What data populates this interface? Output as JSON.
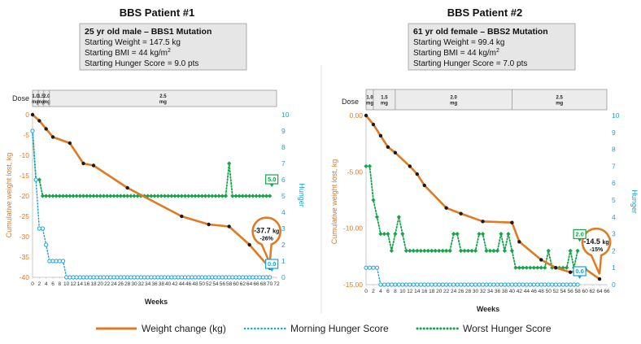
{
  "colors": {
    "weight": "#e07a22",
    "morning": "#1aa3d9",
    "worst": "#16a34a",
    "box_fill": "#e6e6e6"
  },
  "legend": {
    "weight_label": "Weight change (kg)",
    "morning_label": "Morning Hunger Score",
    "worst_label": "Worst Hunger Score"
  },
  "chart_data": [
    {
      "type": "line",
      "title": "BBS Patient #1",
      "info_box": {
        "heading": "25 yr old male – BBS1 Mutation",
        "line1": "Starting Weight = 147.5 kg",
        "line2_prefix": "Starting BMI = 44 kg/m",
        "line2_sup": "2",
        "line3": "Starting Hunger Score = 9.0 pts"
      },
      "dose_label": "Dose",
      "dose_segments": [
        {
          "from": 0,
          "to": 1.7,
          "label": [
            "1.0",
            "mg"
          ]
        },
        {
          "from": 1.7,
          "to": 3.3,
          "label": [
            "1.5",
            "mg"
          ]
        },
        {
          "from": 3.3,
          "to": 5,
          "label": [
            "2.0",
            "mg"
          ]
        },
        {
          "from": 5,
          "to": 72,
          "label": [
            "2.5",
            "mg"
          ]
        }
      ],
      "xlabel": "Weeks",
      "ylabel": "Cumulative weight lost, kg",
      "y2label": "Hunger",
      "xlim": [
        0,
        72
      ],
      "x_ticks": [
        0,
        2,
        4,
        6,
        8,
        10,
        12,
        14,
        16,
        18,
        20,
        22,
        24,
        26,
        28,
        30,
        32,
        34,
        36,
        38,
        40,
        42,
        44,
        46,
        48,
        50,
        52,
        54,
        56,
        58,
        60,
        62,
        64,
        66,
        68,
        70,
        72
      ],
      "ylim": [
        -40,
        0
      ],
      "y_ticks": [
        0,
        -5,
        -10,
        -15,
        -20,
        -25,
        -30,
        -35,
        -40
      ],
      "y_tick_labels": [
        "0",
        "-5",
        "-10",
        "-15",
        "-20",
        "-25",
        "-30",
        "-35",
        "-40"
      ],
      "y2lim": [
        0,
        10
      ],
      "y2_ticks": [
        0,
        1,
        2,
        3,
        4,
        5,
        6,
        7,
        8,
        9,
        10
      ],
      "weight": {
        "x": [
          0,
          2,
          4,
          6,
          11,
          15,
          18,
          28,
          44,
          52,
          58,
          64,
          70
        ],
        "y": [
          0,
          -1.5,
          -3.5,
          -5.5,
          -7,
          -12,
          -12.5,
          -18,
          -25,
          -27,
          -27.5,
          -32,
          -37.7
        ]
      },
      "morning": {
        "x": [
          0,
          1,
          2,
          3,
          4,
          5,
          6,
          7,
          8,
          9,
          10,
          11,
          12,
          13,
          14,
          15,
          16,
          17,
          18,
          19,
          20,
          21,
          22,
          23,
          24,
          25,
          26,
          27,
          28,
          29,
          30,
          31,
          32,
          33,
          34,
          35,
          36,
          37,
          38,
          39,
          40,
          41,
          42,
          43,
          44,
          45,
          46,
          47,
          48,
          49,
          50,
          51,
          52,
          53,
          54,
          55,
          56,
          57,
          58,
          59,
          60,
          61,
          62,
          63,
          64,
          65,
          66,
          67,
          68,
          69,
          70
        ],
        "y": [
          9,
          6,
          3,
          3,
          2,
          1,
          1,
          1,
          1,
          1,
          0,
          0,
          0,
          0,
          0,
          0,
          0,
          0,
          0,
          0,
          0,
          0,
          0,
          0,
          0,
          0,
          0,
          0,
          0,
          0,
          0,
          0,
          0,
          0,
          0,
          0,
          0,
          0,
          0,
          0,
          0,
          0,
          0,
          0,
          0,
          0,
          0,
          0,
          0,
          0,
          0,
          0,
          0,
          0,
          0,
          0,
          0,
          0,
          0,
          0,
          0,
          0,
          0,
          0,
          0,
          0,
          0,
          0,
          0,
          0,
          0
        ]
      },
      "worst": {
        "x": [
          0,
          1,
          2,
          3,
          4,
          5,
          6,
          7,
          8,
          9,
          10,
          11,
          12,
          13,
          14,
          15,
          16,
          17,
          18,
          19,
          20,
          21,
          22,
          23,
          24,
          25,
          26,
          27,
          28,
          29,
          30,
          31,
          32,
          33,
          34,
          35,
          36,
          37,
          38,
          39,
          40,
          41,
          42,
          43,
          44,
          45,
          46,
          47,
          48,
          49,
          50,
          51,
          52,
          53,
          54,
          55,
          56,
          57,
          58,
          59,
          60,
          61,
          62,
          63,
          64,
          65,
          66,
          67,
          68,
          69,
          70
        ],
        "y": [
          9,
          6,
          6,
          5,
          5,
          5,
          5,
          5,
          5,
          5,
          5,
          5,
          5,
          5,
          5,
          5,
          5,
          5,
          5,
          5,
          5,
          5,
          5,
          5,
          5,
          5,
          5,
          5,
          5,
          5,
          5,
          5,
          5,
          5,
          5,
          5,
          5,
          5,
          5,
          5,
          5,
          5,
          5,
          5,
          5,
          5,
          5,
          5,
          5,
          5,
          5,
          5,
          5,
          5,
          5,
          5,
          5,
          5,
          7,
          5,
          5,
          5,
          5,
          5,
          5,
          5,
          5,
          5,
          5,
          5,
          5
        ]
      },
      "callout": {
        "value": "-37.7",
        "unit": "kg",
        "pct": "-26%",
        "x": 70,
        "y": -37.7
      },
      "end_worst": "5.0",
      "end_morning": "0.0"
    },
    {
      "type": "line",
      "title": "BBS Patient #2",
      "info_box": {
        "heading": "61 yr old female – BBS2 Mutation",
        "line1": "Starting Weight = 99.4 kg",
        "line2_prefix": "Starting BMI = 44 kg/m",
        "line2_sup": "2",
        "line3": "Starting Hunger Score = 7.0 pts"
      },
      "dose_label": "Dose",
      "dose_segments": [
        {
          "from": 0,
          "to": 2,
          "label": [
            "1.0",
            "mg"
          ]
        },
        {
          "from": 2,
          "to": 8,
          "label": [
            "1.5",
            "mg"
          ]
        },
        {
          "from": 8,
          "to": 40,
          "label": [
            "2.0",
            "mg"
          ]
        },
        {
          "from": 40,
          "to": 66,
          "label": [
            "2.5",
            "mg"
          ]
        }
      ],
      "xlabel": "Weeks",
      "ylabel": "Cumulative weight lost, kg",
      "y2label": "Hunger",
      "xlim": [
        0,
        66
      ],
      "x_ticks": [
        0,
        2,
        4,
        6,
        8,
        10,
        12,
        14,
        16,
        18,
        20,
        22,
        24,
        26,
        28,
        30,
        32,
        34,
        36,
        38,
        40,
        42,
        44,
        46,
        48,
        50,
        52,
        54,
        56,
        58,
        60,
        62,
        64,
        66
      ],
      "ylim": [
        -15,
        0
      ],
      "y_ticks": [
        0,
        -5,
        -10,
        -15
      ],
      "y_tick_labels": [
        "0.00",
        "-5.00",
        "-10.00",
        "-15.00"
      ],
      "y2lim": [
        0,
        10
      ],
      "y2_ticks": [
        0,
        1,
        2,
        3,
        4,
        5,
        6,
        7,
        8,
        9,
        10
      ],
      "weight": {
        "x": [
          0,
          2,
          4,
          6,
          8,
          12,
          14,
          16,
          22,
          26,
          32,
          40,
          42,
          48,
          52,
          56,
          60,
          64
        ],
        "y": [
          0,
          -0.8,
          -1.8,
          -2.8,
          -3.3,
          -4.5,
          -5.2,
          -6.2,
          -8.2,
          -8.7,
          -9.4,
          -9.5,
          -11.2,
          -12.8,
          -13.5,
          -13.9,
          -13.6,
          -14.5
        ]
      },
      "morning": {
        "x": [
          0,
          1,
          2,
          3,
          4,
          5,
          6,
          7,
          8,
          9,
          10,
          11,
          12,
          13,
          14,
          15,
          16,
          17,
          18,
          19,
          20,
          21,
          22,
          23,
          24,
          25,
          26,
          27,
          28,
          29,
          30,
          31,
          32,
          33,
          34,
          35,
          36,
          37,
          38,
          39,
          40,
          41,
          42,
          43,
          44,
          45,
          46,
          47,
          48,
          49,
          50,
          51,
          52,
          53,
          54,
          55,
          56,
          57,
          58
        ],
        "y": [
          1,
          1,
          1,
          1,
          0,
          0,
          0,
          0,
          0,
          0,
          0,
          0,
          0,
          0,
          0,
          0,
          0,
          0,
          0,
          0,
          0,
          0,
          0,
          0,
          0,
          0,
          0,
          0,
          0,
          0,
          0,
          0,
          0,
          0,
          0,
          0,
          0,
          0,
          0,
          0,
          0,
          0,
          0,
          0,
          0,
          0,
          0,
          0,
          0,
          0,
          0,
          0,
          0,
          0,
          0,
          0,
          0,
          0,
          0
        ]
      },
      "worst": {
        "x": [
          0,
          1,
          2,
          3,
          4,
          5,
          6,
          7,
          8,
          9,
          10,
          11,
          12,
          13,
          14,
          15,
          16,
          17,
          18,
          19,
          20,
          21,
          22,
          23,
          24,
          25,
          26,
          27,
          28,
          29,
          30,
          31,
          32,
          33,
          34,
          35,
          36,
          37,
          38,
          39,
          40,
          41,
          42,
          43,
          44,
          45,
          46,
          47,
          48,
          49,
          50,
          51,
          52,
          53,
          54,
          55,
          56,
          57,
          58
        ],
        "y": [
          7,
          7,
          5,
          4,
          3,
          3,
          3,
          2,
          3,
          4,
          3,
          2,
          2,
          2,
          2,
          2,
          2,
          2,
          2,
          2,
          2,
          2,
          2,
          2,
          3,
          3,
          2,
          2,
          2,
          2,
          2,
          3,
          3,
          2,
          2,
          2,
          2,
          3,
          2,
          3,
          2,
          1,
          1,
          1,
          1,
          1,
          1,
          1,
          1,
          1,
          2,
          1,
          1,
          1,
          1,
          1,
          2,
          1,
          2
        ]
      },
      "callout": {
        "value": "-14.5",
        "unit": "kg",
        "pct": "-15%",
        "x": 64,
        "y": -14.5
      },
      "end_worst": "2.0",
      "end_morning": "0.0"
    }
  ]
}
